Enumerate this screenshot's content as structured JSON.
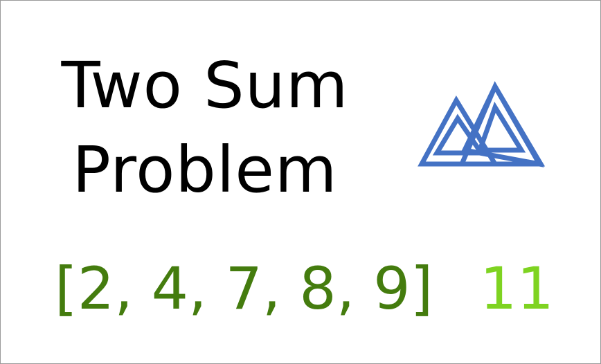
{
  "title": {
    "line1": "Two Sum",
    "line2": "Problem"
  },
  "logo": {
    "icon": "twin-peaks-triangle-icon",
    "color": "#4472c4"
  },
  "example": {
    "array": "[2, 4, 7, 8, 9]",
    "target": "11",
    "array_color": "#447c0e",
    "target_color": "#7ed321"
  }
}
